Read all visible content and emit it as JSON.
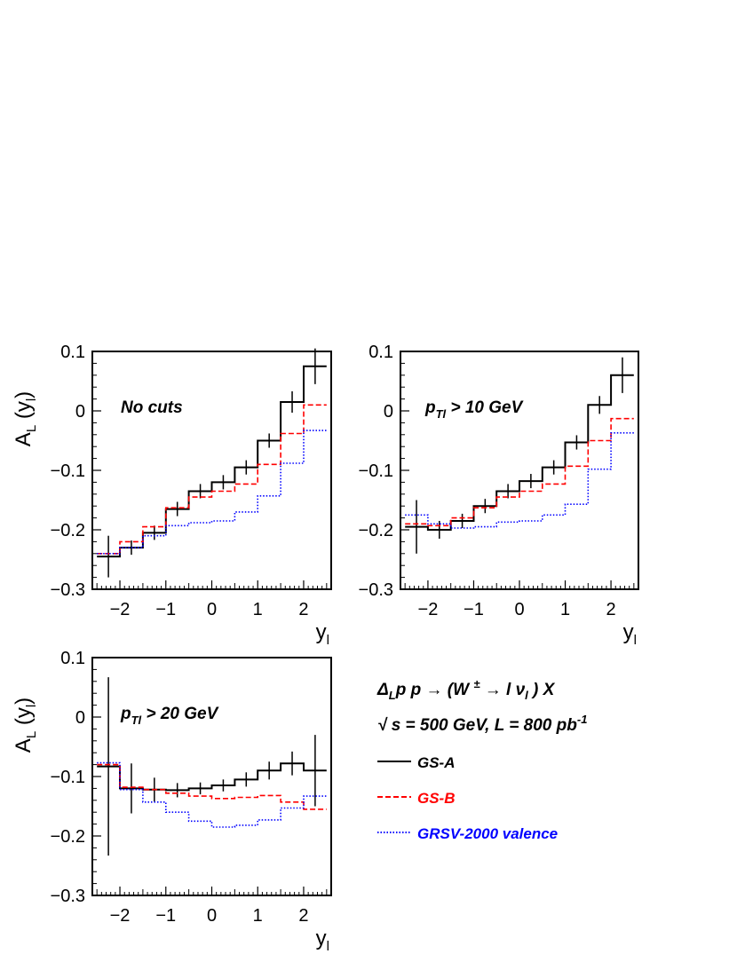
{
  "chart_data": [
    {
      "type": "line",
      "step": true,
      "annotation": {
        "base": "No cuts",
        "sub": "",
        "rest": ""
      },
      "xlabel": {
        "base": "y",
        "sub": "l"
      },
      "ylabel": {
        "base": "A",
        "sub": "L",
        "rest": " (y",
        "sub2": "l",
        "close": ")"
      },
      "xlim": [
        -2.6,
        2.6
      ],
      "ylim": [
        -0.3,
        0.1
      ],
      "xticks": [
        -2,
        -1,
        0,
        1,
        2
      ],
      "xtick_labels": [
        "−2",
        "−1",
        "0",
        "1",
        "2"
      ],
      "yticks": [
        -0.3,
        -0.2,
        -0.1,
        0,
        0.1
      ],
      "ytick_labels": [
        "−0.3",
        "−0.2",
        "−0.1",
        "0",
        "0.1"
      ],
      "bin_edges": [
        -2.5,
        -2,
        -1.5,
        -1,
        -0.5,
        0,
        0.5,
        1,
        1.5,
        2,
        2.5
      ],
      "series": [
        {
          "name": "GS-A",
          "values": [
            -0.245,
            -0.23,
            -0.205,
            -0.165,
            -0.135,
            -0.12,
            -0.095,
            -0.05,
            0.015,
            0.075
          ],
          "errors": [
            0.035,
            0.012,
            0.012,
            0.012,
            0.012,
            0.012,
            0.012,
            0.012,
            0.018,
            0.03
          ]
        },
        {
          "name": "GS-B",
          "values": [
            -0.24,
            -0.22,
            -0.195,
            -0.163,
            -0.145,
            -0.135,
            -0.123,
            -0.09,
            -0.038,
            0.01
          ]
        },
        {
          "name": "GRSV-2000 valence",
          "values": [
            -0.24,
            -0.23,
            -0.21,
            -0.193,
            -0.188,
            -0.185,
            -0.17,
            -0.143,
            -0.088,
            -0.033
          ]
        }
      ]
    },
    {
      "type": "line",
      "step": true,
      "annotation": {
        "base": "p",
        "sub": "Tl",
        "rest": " > 10 GeV"
      },
      "xlabel": {
        "base": "y",
        "sub": "l"
      },
      "ylabel": {
        "base": "",
        "sub": "",
        "rest": "",
        "sub2": "",
        "close": ""
      },
      "xlim": [
        -2.6,
        2.6
      ],
      "ylim": [
        -0.3,
        0.1
      ],
      "xticks": [
        -2,
        -1,
        0,
        1,
        2
      ],
      "xtick_labels": [
        "−2",
        "−1",
        "0",
        "1",
        "2"
      ],
      "yticks": [
        -0.3,
        -0.2,
        -0.1,
        0,
        0.1
      ],
      "ytick_labels": [
        "−0.3",
        "−0.2",
        "−0.1",
        "0",
        "0.1"
      ],
      "bin_edges": [
        -2.5,
        -2,
        -1.5,
        -1,
        -0.5,
        0,
        0.5,
        1,
        1.5,
        2,
        2.5
      ],
      "series": [
        {
          "name": "GS-A",
          "values": [
            -0.195,
            -0.2,
            -0.185,
            -0.16,
            -0.135,
            -0.118,
            -0.095,
            -0.053,
            0.01,
            0.06
          ],
          "errors": [
            0.045,
            0.015,
            0.012,
            0.012,
            0.012,
            0.012,
            0.012,
            0.012,
            0.015,
            0.03
          ]
        },
        {
          "name": "GS-B",
          "values": [
            -0.19,
            -0.193,
            -0.18,
            -0.163,
            -0.145,
            -0.135,
            -0.123,
            -0.093,
            -0.05,
            -0.013
          ]
        },
        {
          "name": "GRSV-2000 valence",
          "values": [
            -0.175,
            -0.19,
            -0.197,
            -0.195,
            -0.187,
            -0.185,
            -0.175,
            -0.157,
            -0.098,
            -0.037
          ]
        }
      ]
    },
    {
      "type": "line",
      "step": true,
      "annotation": {
        "base": "p",
        "sub": "Tl",
        "rest": " > 20 GeV"
      },
      "xlabel": {
        "base": "y",
        "sub": "l"
      },
      "ylabel": {
        "base": "A",
        "sub": "L",
        "rest": " (y",
        "sub2": "l",
        "close": ")"
      },
      "xlim": [
        -2.6,
        2.6
      ],
      "ylim": [
        -0.3,
        0.1
      ],
      "xticks": [
        -2,
        -1,
        0,
        1,
        2
      ],
      "xtick_labels": [
        "−2",
        "−1",
        "0",
        "1",
        "2"
      ],
      "yticks": [
        -0.3,
        -0.2,
        -0.1,
        0,
        0.1
      ],
      "ytick_labels": [
        "−0.3",
        "−0.2",
        "−0.1",
        "0",
        "0.1"
      ],
      "bin_edges": [
        -2.5,
        -2,
        -1.5,
        -1,
        -0.5,
        0,
        0.5,
        1,
        1.5,
        2,
        2.5
      ],
      "series": [
        {
          "name": "GS-A",
          "values": [
            -0.083,
            -0.12,
            -0.122,
            -0.123,
            -0.12,
            -0.115,
            -0.105,
            -0.09,
            -0.078,
            -0.09
          ],
          "errors": [
            0.15,
            0.042,
            0.02,
            0.012,
            0.01,
            0.01,
            0.012,
            0.015,
            0.02,
            0.06
          ]
        },
        {
          "name": "GS-B",
          "values": [
            -0.08,
            -0.118,
            -0.122,
            -0.128,
            -0.133,
            -0.137,
            -0.135,
            -0.132,
            -0.143,
            -0.155
          ]
        },
        {
          "name": "GRSV-2000 valence",
          "values": [
            -0.077,
            -0.122,
            -0.143,
            -0.16,
            -0.175,
            -0.185,
            -0.182,
            -0.173,
            -0.153,
            -0.133
          ]
        }
      ]
    }
  ],
  "colors": {
    "GS-A": "#000000",
    "GS-B": "#ff0000",
    "GRSV-2000 valence": "#0000ff",
    "frame": "#000000"
  },
  "legend": {
    "title_line1": {
      "a": "Δ",
      "a_sub": "L",
      "b": "p p → (W ",
      "b_sup": "±",
      "c": " → l ν",
      "c_sub": "l",
      "d": " ) X"
    },
    "title_line2": {
      "a": "√ s = 500 GeV, L = 800 pb",
      "a_sup": "-1"
    },
    "entries": [
      {
        "label": "GS-A",
        "style": "solid"
      },
      {
        "label": "GS-B",
        "style": "dashed"
      },
      {
        "label": "GRSV-2000 valence",
        "style": "dotted"
      }
    ]
  }
}
